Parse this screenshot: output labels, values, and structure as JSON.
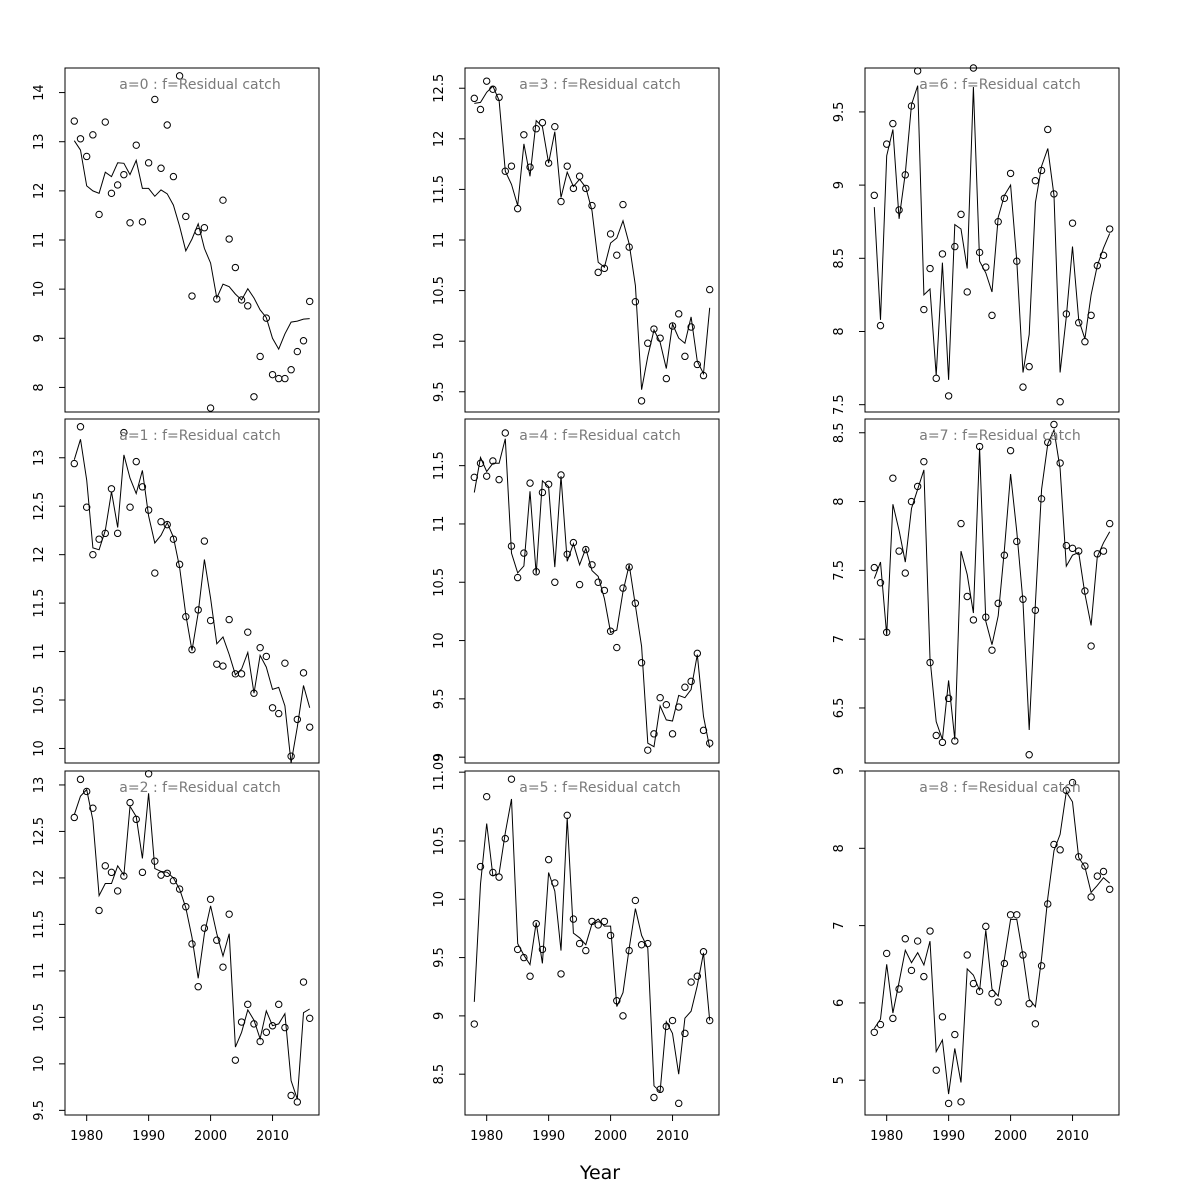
{
  "chart_data": {
    "type": "line",
    "xlabel": "Year",
    "x_ticks": [
      1980,
      1990,
      2000,
      2010
    ],
    "x_range": [
      1976.5,
      2017.5
    ],
    "x_start": 1978,
    "panels": [
      {
        "title": "a=0  :  f=Residual catch",
        "ylim": [
          7.5,
          14.5
        ],
        "y_ticks": [
          8,
          9,
          10,
          11,
          12,
          13,
          14
        ],
        "observed": [
          13.42,
          13.06,
          12.7,
          13.14,
          11.52,
          13.4,
          11.95,
          12.12,
          12.33,
          11.35,
          12.93,
          11.37,
          12.57,
          13.86,
          12.46,
          13.34,
          12.29,
          14.34,
          11.48,
          9.86,
          11.17,
          11.25,
          7.58,
          9.8,
          11.81,
          11.02,
          10.44,
          9.78,
          9.66,
          7.81,
          8.63,
          9.41,
          8.26,
          8.18,
          8.18,
          8.36,
          8.73,
          8.95,
          9.75
        ],
        "fitted": [
          13.02,
          12.83,
          12.1,
          12.0,
          11.95,
          12.38,
          12.29,
          12.57,
          12.56,
          12.33,
          12.62,
          12.05,
          12.05,
          11.89,
          12.02,
          11.94,
          11.71,
          11.28,
          10.78,
          11.02,
          11.33,
          10.83,
          10.53,
          9.82,
          10.1,
          10.05,
          9.9,
          9.78,
          10.01,
          9.82,
          9.58,
          9.42,
          9.0,
          8.78,
          9.09,
          9.33,
          9.35,
          9.39,
          9.4
        ]
      },
      {
        "title": "a=3  :  f=Residual catch",
        "ylim": [
          9.3,
          12.7
        ],
        "y_ticks": [
          9.5,
          10.0,
          10.5,
          11.0,
          11.5,
          12.0,
          12.5
        ],
        "observed": [
          12.4,
          12.29,
          12.57,
          12.49,
          12.41,
          11.68,
          11.73,
          11.31,
          12.04,
          11.72,
          12.1,
          12.16,
          11.76,
          12.12,
          11.38,
          11.73,
          11.51,
          11.63,
          11.51,
          11.34,
          10.68,
          10.72,
          11.06,
          10.85,
          11.35,
          10.93,
          10.39,
          9.41,
          9.98,
          10.12,
          10.03,
          9.63,
          10.15,
          10.27,
          9.85,
          10.14,
          9.77,
          9.66,
          10.51
        ],
        "fitted": [
          12.35,
          12.36,
          12.46,
          12.52,
          12.38,
          11.68,
          11.55,
          11.34,
          11.95,
          11.63,
          12.18,
          12.12,
          11.76,
          12.07,
          11.42,
          11.67,
          11.53,
          11.6,
          11.52,
          11.29,
          10.78,
          10.73,
          10.97,
          11.02,
          11.19,
          10.96,
          10.55,
          9.52,
          9.85,
          10.11,
          9.99,
          9.73,
          10.17,
          10.03,
          9.98,
          10.24,
          9.8,
          9.68,
          10.33
        ]
      },
      {
        "title": "a=6  :  f=Residual catch",
        "ylim": [
          7.45,
          9.8
        ],
        "y_ticks": [
          7.5,
          8.0,
          8.5,
          9.0,
          9.5
        ],
        "observed": [
          8.93,
          8.04,
          9.28,
          9.42,
          8.83,
          9.07,
          9.54,
          9.78,
          8.15,
          8.43,
          7.68,
          8.53,
          7.56,
          8.58,
          8.8,
          8.27,
          9.8,
          8.54,
          8.44,
          8.11,
          8.75,
          8.91,
          9.08,
          8.48,
          7.62,
          7.76,
          9.03,
          9.1,
          9.38,
          8.94,
          7.52,
          8.12,
          8.74,
          8.06,
          7.93,
          8.11,
          8.45,
          8.52,
          8.7
        ],
        "fitted": [
          8.85,
          8.08,
          9.2,
          9.38,
          8.77,
          9.08,
          9.55,
          9.68,
          8.25,
          8.29,
          7.7,
          8.47,
          7.67,
          8.73,
          8.7,
          8.43,
          9.67,
          8.48,
          8.4,
          8.27,
          8.78,
          8.93,
          9.0,
          8.48,
          7.72,
          7.98,
          8.88,
          9.13,
          9.25,
          8.93,
          7.72,
          8.1,
          8.58,
          8.08,
          7.95,
          8.25,
          8.45,
          8.57,
          8.67
        ]
      },
      {
        "title": "a=1  :  f=Residual catch",
        "ylim": [
          9.85,
          13.4
        ],
        "y_ticks": [
          10.0,
          10.5,
          11.0,
          11.5,
          12.0,
          12.5,
          13.0
        ],
        "observed": [
          12.94,
          13.32,
          12.49,
          12.0,
          12.16,
          12.22,
          12.68,
          12.22,
          13.26,
          12.49,
          12.96,
          12.7,
          12.46,
          11.81,
          12.34,
          12.31,
          12.16,
          11.9,
          11.36,
          11.02,
          11.43,
          12.14,
          11.32,
          10.87,
          10.85,
          11.33,
          10.77,
          10.77,
          11.2,
          10.57,
          11.04,
          10.95,
          10.42,
          10.36,
          10.88,
          9.92,
          10.3,
          10.78,
          10.22
        ],
        "fitted": [
          12.98,
          13.19,
          12.77,
          12.07,
          12.05,
          12.25,
          12.65,
          12.28,
          13.03,
          12.79,
          12.63,
          12.87,
          12.4,
          12.12,
          12.2,
          12.33,
          12.18,
          11.87,
          11.38,
          11.01,
          11.4,
          11.95,
          11.55,
          11.08,
          11.15,
          10.97,
          10.76,
          10.82,
          10.99,
          10.57,
          10.96,
          10.84,
          10.61,
          10.63,
          10.44,
          9.85,
          10.22,
          10.65,
          10.42
        ]
      },
      {
        "title": "a=4  :  f=Residual catch",
        "ylim": [
          8.95,
          11.9
        ],
        "y_ticks": [
          9.0,
          9.5,
          10.0,
          10.5,
          11.0,
          11.5
        ],
        "observed": [
          11.4,
          11.52,
          11.41,
          11.54,
          11.38,
          11.78,
          10.81,
          10.54,
          10.75,
          11.35,
          10.59,
          11.27,
          11.34,
          10.5,
          11.42,
          10.74,
          10.84,
          10.48,
          10.78,
          10.65,
          10.5,
          10.43,
          10.08,
          9.94,
          10.45,
          10.63,
          10.32,
          9.81,
          9.06,
          9.2,
          9.51,
          9.45,
          9.2,
          9.43,
          9.6,
          9.65,
          9.89,
          9.23,
          9.12
        ],
        "fitted": [
          11.27,
          11.57,
          11.45,
          11.52,
          11.52,
          11.73,
          10.75,
          10.58,
          10.64,
          11.28,
          10.57,
          11.37,
          11.32,
          10.63,
          11.41,
          10.68,
          10.83,
          10.65,
          10.79,
          10.6,
          10.55,
          10.36,
          10.07,
          10.09,
          10.42,
          10.65,
          10.3,
          9.95,
          9.12,
          9.09,
          9.44,
          9.32,
          9.31,
          9.53,
          9.51,
          9.58,
          9.88,
          9.35,
          9.08
        ]
      },
      {
        "title": "a=7  :  f=Residual catch",
        "ylim": [
          6.1,
          8.6
        ],
        "y_ticks": [
          6.5,
          7.0,
          7.5,
          8.0,
          8.5
        ],
        "observed": [
          7.52,
          7.41,
          7.05,
          8.17,
          7.64,
          7.48,
          8.0,
          8.11,
          8.29,
          6.83,
          6.3,
          6.25,
          6.57,
          6.26,
          7.84,
          7.31,
          7.14,
          8.4,
          7.16,
          6.92,
          7.26,
          7.61,
          8.37,
          7.71,
          7.29,
          6.16,
          7.21,
          8.02,
          8.43,
          8.56,
          8.28,
          7.68,
          7.66,
          7.64,
          7.35,
          6.95,
          7.62,
          7.64,
          7.84
        ],
        "fitted": [
          7.44,
          7.56,
          7.03,
          7.98,
          7.79,
          7.56,
          7.95,
          8.09,
          8.23,
          6.86,
          6.4,
          6.27,
          6.7,
          6.27,
          7.64,
          7.47,
          7.19,
          8.39,
          7.13,
          6.96,
          7.17,
          7.65,
          8.2,
          7.78,
          7.27,
          6.34,
          7.26,
          8.09,
          8.42,
          8.52,
          8.24,
          7.53,
          7.61,
          7.63,
          7.33,
          7.1,
          7.6,
          7.7,
          7.78
        ]
      },
      {
        "title": "a=2  :  f=Residual catch",
        "ylim": [
          9.45,
          13.15
        ],
        "y_ticks": [
          9.5,
          10.0,
          10.5,
          11.0,
          11.5,
          12.0,
          12.5,
          13.0
        ],
        "observed": [
          12.65,
          13.06,
          12.93,
          12.75,
          11.65,
          12.13,
          12.06,
          11.86,
          12.02,
          12.81,
          12.63,
          12.06,
          13.12,
          12.18,
          12.03,
          12.05,
          11.97,
          11.88,
          11.69,
          11.29,
          10.83,
          11.46,
          11.77,
          11.33,
          11.04,
          11.61,
          10.04,
          10.45,
          10.64,
          10.43,
          10.24,
          10.34,
          10.41,
          10.64,
          10.39,
          9.66,
          9.59,
          10.88,
          10.49
        ],
        "fitted": [
          12.68,
          12.88,
          12.95,
          12.62,
          11.81,
          11.94,
          11.94,
          12.13,
          12.03,
          12.77,
          12.66,
          12.21,
          12.91,
          12.1,
          12.07,
          12.06,
          12.0,
          11.88,
          11.68,
          11.36,
          10.92,
          11.4,
          11.7,
          11.4,
          11.16,
          11.4,
          10.18,
          10.34,
          10.58,
          10.47,
          10.27,
          10.57,
          10.41,
          10.43,
          10.54,
          9.82,
          9.62,
          10.55,
          10.59
        ]
      },
      {
        "title": "a=5  :  f=Residual catch",
        "ylim": [
          8.15,
          11.1
        ],
        "y_ticks": [
          8.5,
          9.0,
          9.5,
          10.0,
          10.5,
          11.09
        ],
        "observed": [
          8.93,
          10.28,
          10.88,
          10.23,
          10.19,
          10.52,
          11.03,
          9.57,
          9.5,
          9.34,
          9.79,
          9.57,
          10.34,
          10.14,
          9.36,
          10.72,
          9.83,
          9.62,
          9.56,
          9.81,
          9.78,
          9.81,
          9.69,
          9.13,
          9.0,
          9.56,
          9.99,
          9.61,
          9.62,
          8.3,
          8.37,
          8.91,
          8.96,
          8.25,
          8.85,
          9.29,
          9.34,
          9.55,
          8.96
        ],
        "fitted": [
          9.12,
          10.13,
          10.65,
          10.2,
          10.22,
          10.57,
          10.86,
          9.62,
          9.52,
          9.44,
          9.8,
          9.45,
          10.23,
          10.07,
          9.56,
          10.7,
          9.71,
          9.67,
          9.61,
          9.79,
          9.83,
          9.77,
          9.77,
          9.08,
          9.2,
          9.58,
          9.92,
          9.69,
          9.58,
          8.4,
          8.35,
          8.95,
          8.85,
          8.5,
          8.98,
          9.04,
          9.26,
          9.54,
          8.96
        ]
      },
      {
        "title": "a=8  :  f=Residual catch",
        "ylim": [
          4.55,
          9.0
        ],
        "y_ticks": [
          5,
          6,
          7,
          8,
          9
        ],
        "observed": [
          5.62,
          5.72,
          6.64,
          5.8,
          6.18,
          6.83,
          6.42,
          6.8,
          6.34,
          6.93,
          5.13,
          5.82,
          4.7,
          5.59,
          4.72,
          6.62,
          6.25,
          6.15,
          6.99,
          6.12,
          6.01,
          6.51,
          7.14,
          7.14,
          6.62,
          5.99,
          5.73,
          6.48,
          7.28,
          8.05,
          7.98,
          8.75,
          8.85,
          7.89,
          7.77,
          7.37,
          7.64,
          7.7,
          7.47
        ],
        "fitted": [
          5.67,
          5.79,
          6.5,
          5.87,
          6.27,
          6.68,
          6.52,
          6.65,
          6.49,
          6.8,
          5.37,
          5.52,
          4.82,
          5.41,
          4.97,
          6.44,
          6.36,
          6.16,
          6.94,
          6.18,
          6.09,
          6.57,
          7.08,
          7.08,
          6.61,
          6.05,
          5.95,
          6.58,
          7.36,
          7.97,
          8.18,
          8.73,
          8.6,
          7.88,
          7.76,
          7.43,
          7.52,
          7.62,
          7.55
        ]
      }
    ]
  }
}
